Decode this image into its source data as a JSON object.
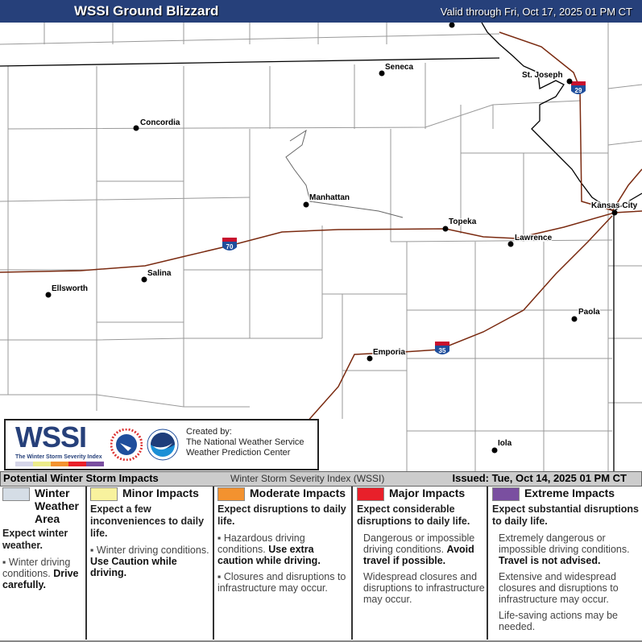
{
  "header": {
    "title": "WSSI Ground Blizzard",
    "valid": "Valid through Fri, Oct 17, 2025 01 PM CT"
  },
  "map": {
    "cities": [
      {
        "name": "Seneca"
      },
      {
        "name": "St. Joseph"
      },
      {
        "name": "Concordia"
      },
      {
        "name": "Manhattan"
      },
      {
        "name": "Topeka"
      },
      {
        "name": "Kansas City"
      },
      {
        "name": "Lawrence"
      },
      {
        "name": "Salina"
      },
      {
        "name": "Ellsworth"
      },
      {
        "name": "Paola"
      },
      {
        "name": "Emporia"
      },
      {
        "name": "Iola"
      }
    ],
    "interstates": [
      "70",
      "35",
      "29"
    ],
    "colors": {
      "interstate": "#7a2a10",
      "county": "#999999",
      "state": "#000000",
      "shield_blue": "#1f4e9c",
      "shield_red": "#c8102e"
    }
  },
  "logo": {
    "wssi": "WSSI",
    "wssi_sub": "The Winter Storm Severity Index",
    "created": [
      "Created by:",
      "The National Weather Service",
      "Weather Prediction Center"
    ]
  },
  "legend": {
    "title": "Potential Winter Storm Impacts",
    "index": "Winter Storm Severity Index (WSSI)",
    "issued": "Issued: Tue, Oct 14, 2025 01 PM CT",
    "categories": [
      {
        "label": "Winter Weather Area",
        "color": "#d5dde6",
        "lead": "Expect winter weather.",
        "bullets": [
          {
            "text": "Winter driving conditions. ",
            "bold": "Drive carefully."
          }
        ]
      },
      {
        "label": "Minor Impacts",
        "color": "#f8f29e",
        "lead": "Expect a few inconveniences to daily life.",
        "bullets": [
          {
            "text": "Winter driving conditions. ",
            "bold": "Use Caution while driving."
          }
        ]
      },
      {
        "label": "Moderate Impacts",
        "color": "#f3922f",
        "lead": "Expect disruptions to daily life.",
        "bullets": [
          {
            "text": "Hazardous driving conditions. ",
            "bold": "Use extra caution while driving."
          },
          {
            "text": "Closures and disruptions to infrastructure may occur.",
            "bold": ""
          }
        ]
      },
      {
        "label": "Major Impacts",
        "color": "#e8202a",
        "lead": "Expect considerable disruptions to daily life.",
        "bullets": [
          {
            "text": "Dangerous or impossible driving conditions. ",
            "bold": "Avoid travel if possible."
          },
          {
            "text": "Widespread closures and disruptions to infrastructure may occur.",
            "bold": ""
          }
        ]
      },
      {
        "label": "Extreme Impacts",
        "color": "#7a4fa0",
        "lead": "Expect substantial disruptions to daily life.",
        "bullets": [
          {
            "text": "Extremely dangerous or impossible driving conditions. ",
            "bold": "Travel is not advised."
          },
          {
            "text": "Extensive and widespread closures and disruptions to infrastructure may occur.",
            "bold": ""
          },
          {
            "text": "Life-saving actions may be needed.",
            "bold": ""
          }
        ]
      }
    ]
  }
}
